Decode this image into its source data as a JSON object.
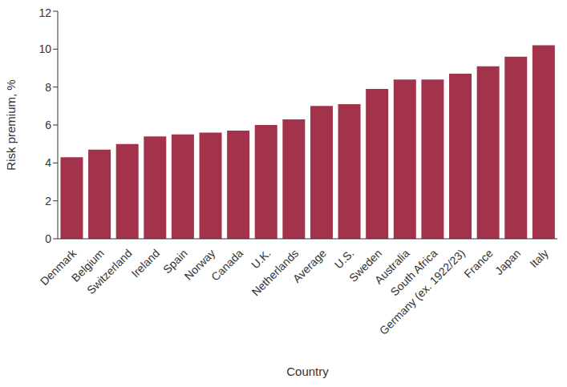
{
  "chart_data": {
    "type": "bar",
    "x_label": "Country",
    "y_label": "Risk premium, %",
    "categories": [
      "Denmark",
      "Belgium",
      "Switzerland",
      "Ireland",
      "Spain",
      "Norway",
      "Canada",
      "U.K.",
      "Netherlands",
      "Average",
      "U.S.",
      "Sweden",
      "Australia",
      "South Africa",
      "Germany (ex. 1922/23)",
      "France",
      "Japan",
      "Italy"
    ],
    "values": [
      4.3,
      4.7,
      5.0,
      5.4,
      5.5,
      5.6,
      5.7,
      6.0,
      6.3,
      7.0,
      7.1,
      7.9,
      8.4,
      8.4,
      8.7,
      9.1,
      9.6,
      10.2
    ],
    "color": "#a3324b",
    "ylim": [
      0,
      12
    ],
    "yticks": [
      0,
      2,
      4,
      6,
      8,
      10,
      12
    ],
    "grid": false
  }
}
